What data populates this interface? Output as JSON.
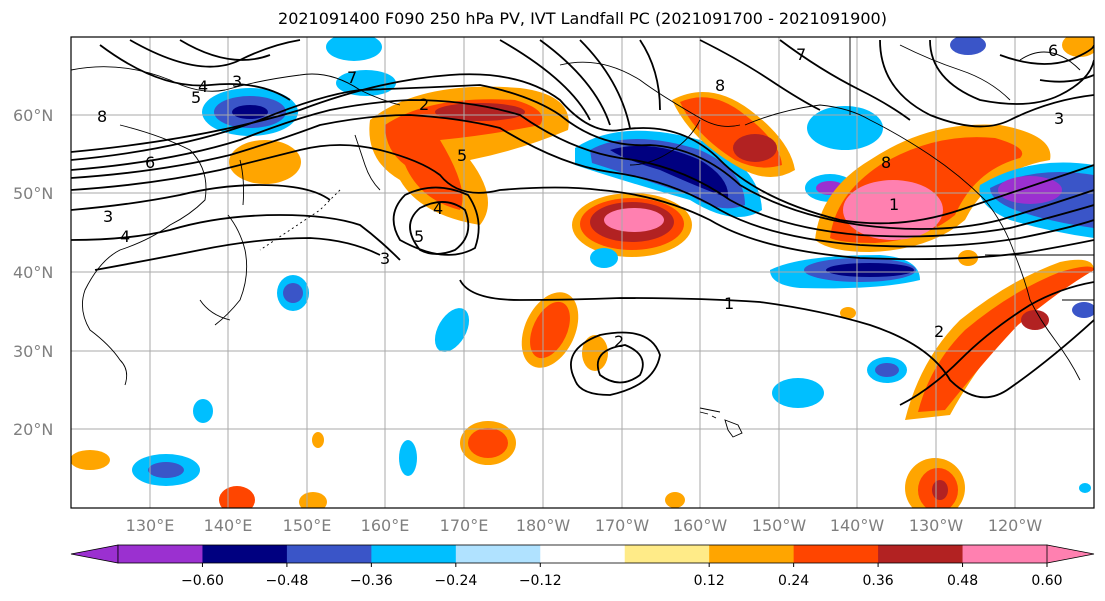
{
  "title": "2021091400 F090 250 hPa PV, IVT Landfall PC (2021091700 - 2021091900)",
  "lon_ticks": [
    "130°E",
    "140°E",
    "150°E",
    "160°E",
    "170°E",
    "180°W",
    "170°W",
    "160°W",
    "150°W",
    "140°W",
    "130°W",
    "120°W"
  ],
  "lat_ticks": [
    "60°N",
    "50°N",
    "40°N",
    "30°N",
    "20°N"
  ],
  "colorbar": {
    "colors": [
      "#9b30d0",
      "#000080",
      "#3a55c8",
      "#00bfff",
      "#b0e2ff",
      "#ffffff",
      "#ffeb88",
      "#ffa500",
      "#ff4500",
      "#b22222",
      "#ff80b0"
    ],
    "labels": [
      "−0.60",
      "−0.48",
      "−0.36",
      "−0.24",
      "−0.12",
      "0.12",
      "0.24",
      "0.36",
      "0.48",
      "0.60"
    ]
  },
  "contour_labels": [
    "4",
    "3",
    "5",
    "8",
    "6",
    "3",
    "4",
    "2",
    "7",
    "5",
    "4",
    "5",
    "3",
    "8",
    "7",
    "6",
    "8",
    "1",
    "1",
    "2",
    "2",
    "3"
  ]
}
